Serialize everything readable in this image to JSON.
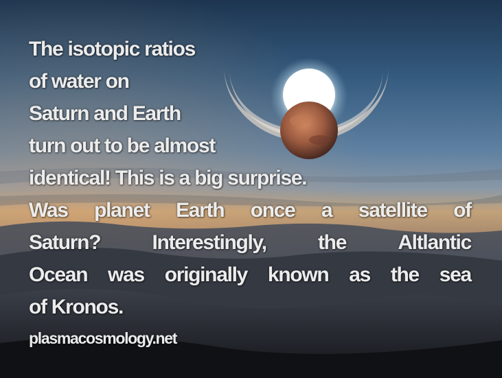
{
  "caption": {
    "line1": "The isotopic ratios",
    "line2": "of water on",
    "line3": "Saturn and Earth",
    "line4": "turn out to be almost",
    "line5": "identical! This is a big surprise.",
    "line6_words": [
      "Was",
      "planet",
      "Earth",
      "once",
      "a",
      "satellite",
      "of"
    ],
    "line7_words": [
      "Saturn?",
      "Interestingly,",
      "the",
      "Altlantic"
    ],
    "line8_words": [
      "Ocean",
      "was",
      "originally",
      "known",
      "as",
      "the",
      "sea"
    ],
    "line9": "of Kronos."
  },
  "website": "plasmacosmology.net"
}
